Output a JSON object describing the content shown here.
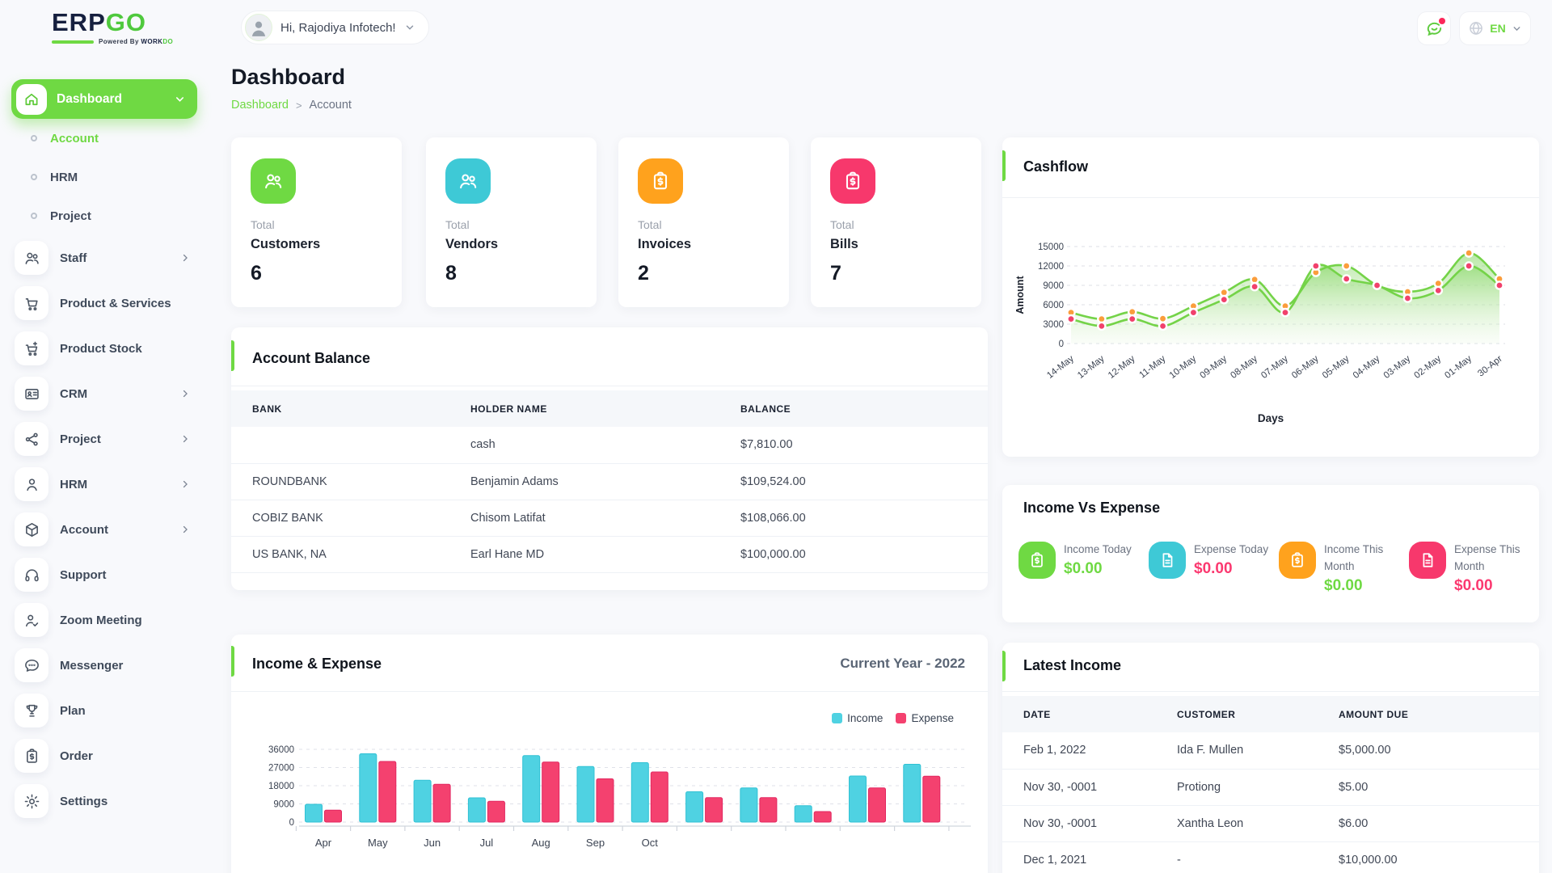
{
  "header": {
    "logo": {
      "erp": "ERP",
      "go": "GO",
      "powered": "Powered By",
      "brand_dark": "WORK",
      "brand_green": "DO"
    },
    "greeting": "Hi, Rajodiya Infotech!",
    "language": "EN"
  },
  "sidebar": {
    "items": [
      {
        "label": "Dashboard",
        "icon": "home",
        "type": "active",
        "chevron": "down"
      },
      {
        "label": "Account",
        "icon": "dot",
        "type": "sub",
        "active": true
      },
      {
        "label": "HRM",
        "icon": "dot",
        "type": "sub"
      },
      {
        "label": "Project",
        "icon": "dot",
        "type": "sub"
      },
      {
        "label": "Staff",
        "icon": "users",
        "chevron": "right"
      },
      {
        "label": "Product & Services",
        "icon": "cart"
      },
      {
        "label": "Product Stock",
        "icon": "cart-plus"
      },
      {
        "label": "CRM",
        "icon": "id-card",
        "chevron": "right"
      },
      {
        "label": "Project",
        "icon": "share",
        "chevron": "right"
      },
      {
        "label": "HRM",
        "icon": "user",
        "chevron": "right"
      },
      {
        "label": "Account",
        "icon": "cube",
        "chevron": "right"
      },
      {
        "label": "Support",
        "icon": "headphones"
      },
      {
        "label": "Zoom Meeting",
        "icon": "user-check"
      },
      {
        "label": "Messenger",
        "icon": "chat"
      },
      {
        "label": "Plan",
        "icon": "trophy"
      },
      {
        "label": "Order",
        "icon": "clipboard-dollar"
      },
      {
        "label": "Settings",
        "icon": "gear"
      }
    ]
  },
  "page": {
    "title": "Dashboard",
    "breadcrumb": [
      "Dashboard",
      "Account"
    ],
    "breadcrumb_sep": ">"
  },
  "stats": [
    {
      "prefix": "Total",
      "label": "Customers",
      "value": "6",
      "color": "#6fd943",
      "icon": "users"
    },
    {
      "prefix": "Total",
      "label": "Vendors",
      "value": "8",
      "color": "#3ec9d6",
      "icon": "users"
    },
    {
      "prefix": "Total",
      "label": "Invoices",
      "value": "2",
      "color": "#ffa21d",
      "icon": "clipboard-dollar"
    },
    {
      "prefix": "Total",
      "label": "Bills",
      "value": "7",
      "color": "#f7386c",
      "icon": "clipboard-dollar"
    }
  ],
  "account_balance": {
    "title": "Account Balance",
    "columns": [
      "BANK",
      "HOLDER NAME",
      "BALANCE"
    ],
    "rows": [
      [
        "",
        "cash",
        "$7,810.00"
      ],
      [
        "ROUNDBANK",
        "Benjamin Adams",
        "$109,524.00"
      ],
      [
        "COBIZ BANK",
        "Chisom Latifat",
        "$108,066.00"
      ],
      [
        "US BANK, NA",
        "Earl Hane MD",
        "$100,000.00"
      ]
    ]
  },
  "income_vs_expense": {
    "title": "Income Vs Expense",
    "items": [
      {
        "label": "Income Today",
        "value": "$0.00",
        "icon": "clipboard-dollar",
        "icon_bg": "#6fd943",
        "value_color": "#6fd943"
      },
      {
        "label": "Expense Today",
        "value": "$0.00",
        "icon": "file",
        "icon_bg": "#3ec9d6",
        "value_color": "#fb3970"
      },
      {
        "label": "Income This Month",
        "value": "$0.00",
        "icon": "clipboard-dollar",
        "icon_bg": "#ffa21d",
        "value_color": "#6fd943"
      },
      {
        "label": "Expense This Month",
        "value": "$0.00",
        "icon": "file",
        "icon_bg": "#f7386c",
        "value_color": "#fb3970"
      }
    ]
  },
  "latest_income": {
    "title": "Latest Income",
    "columns": [
      "DATE",
      "CUSTOMER",
      "AMOUNT DUE"
    ],
    "rows": [
      [
        "Feb 1, 2022",
        "Ida F. Mullen",
        "$5,000.00"
      ],
      [
        "Nov 30, -0001",
        "Protiong",
        "$5.00"
      ],
      [
        "Nov 30, -0001",
        "Xantha Leon",
        "$6.00"
      ],
      [
        "Dec 1, 2021",
        "-",
        "$10,000.00"
      ]
    ]
  },
  "chart_data": [
    {
      "type": "area",
      "title": "Cashflow",
      "xlabel": "Days",
      "ylabel": "Amount",
      "ylim": [
        0,
        15000
      ],
      "yticks": [
        0,
        3000,
        6000,
        9000,
        12000,
        15000
      ],
      "grid": "dashed",
      "x": [
        "14-May",
        "13-May",
        "12-May",
        "11-May",
        "10-May",
        "09-May",
        "08-May",
        "07-May",
        "06-May",
        "05-May",
        "04-May",
        "03-May",
        "02-May",
        "01-May",
        "30-Apr"
      ],
      "series": [
        {
          "name": "income",
          "marker_color": "#fb9d3c",
          "line_color": "#74d348",
          "values": [
            4800,
            3800,
            4900,
            3850,
            5800,
            7900,
            9900,
            5800,
            11000,
            12000,
            9000,
            8000,
            9300,
            14000,
            10000
          ]
        },
        {
          "name": "expense",
          "marker_color": "#f1416c",
          "line_color": "#74d348",
          "values": [
            3800,
            2700,
            3800,
            2700,
            4800,
            6800,
            8800,
            4800,
            12000,
            10000,
            9000,
            7000,
            8200,
            12000,
            9000
          ]
        }
      ]
    },
    {
      "type": "bar",
      "title": "Income & Expense",
      "subtitle": "Current Year - 2022",
      "legend": [
        "Income",
        "Expense"
      ],
      "legend_position": "top-right",
      "ylim": [
        0,
        36000
      ],
      "yticks": [
        0,
        9000,
        18000,
        27000,
        36000
      ],
      "grid": "dashed",
      "categories": [
        "Apr",
        "May",
        "Jun",
        "Jul",
        "Aug",
        "Sep",
        "Oct",
        "",
        "",
        "",
        "",
        ""
      ],
      "series": [
        {
          "name": "Income",
          "color": "#4fd2e2",
          "edge": "#30c1d4",
          "values": [
            8800,
            33800,
            20700,
            12000,
            32900,
            27500,
            29400,
            15000,
            16900,
            8100,
            22800,
            28600
          ]
        },
        {
          "name": "Expense",
          "color": "#f4416f",
          "edge": "#e22760",
          "values": [
            5900,
            30000,
            18700,
            10300,
            29700,
            21400,
            24800,
            12100,
            12100,
            5200,
            16900,
            22700
          ]
        }
      ]
    }
  ]
}
